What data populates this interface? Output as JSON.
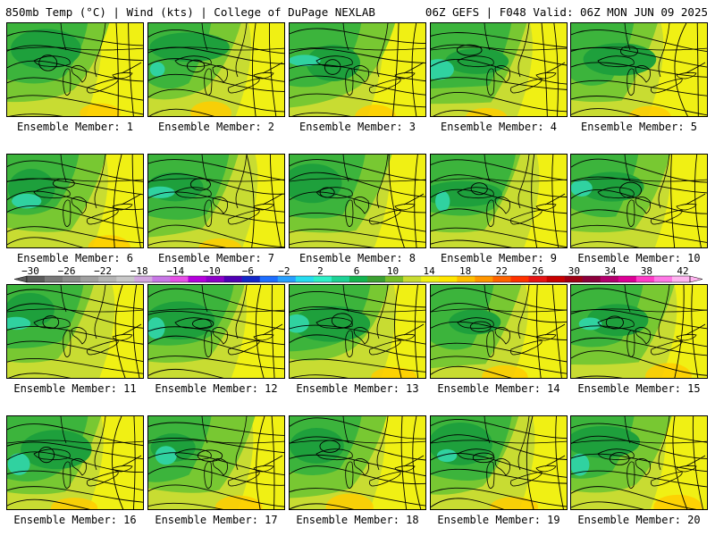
{
  "header": {
    "left": "850mb Temp (°C) | Wind (kts) | College of DuPage NEXLAB",
    "right": "06Z GEFS | F048 Valid: 06Z MON JUN 09 2025"
  },
  "panel_label_prefix": "Ensemble Member: ",
  "members": [
    1,
    2,
    3,
    4,
    5,
    6,
    7,
    8,
    9,
    10,
    11,
    12,
    13,
    14,
    15,
    16,
    17,
    18,
    19,
    20
  ],
  "colorbar": {
    "ticks": [
      "−30",
      "−26",
      "−22",
      "−18",
      "−14",
      "−10",
      "−6",
      "−2",
      "2",
      "6",
      "10",
      "14",
      "18",
      "22",
      "26",
      "30",
      "34",
      "38",
      "42"
    ],
    "colors": [
      "#5c5c5c",
      "#787878",
      "#8c8c8c",
      "#a0a0a0",
      "#b4b4b4",
      "#c8c8c8",
      "#d2a8e0",
      "#c878e6",
      "#e650e6",
      "#b400dc",
      "#8c00c8",
      "#5000b4",
      "#1428c8",
      "#1e6eff",
      "#28a0ff",
      "#28dcf0",
      "#30f0c8",
      "#1ed296",
      "#14b450",
      "#3ca032",
      "#78be28",
      "#c8dc32",
      "#f0f014",
      "#ffe600",
      "#ffbe00",
      "#ff9600",
      "#ff6400",
      "#ff3200",
      "#e61414",
      "#c80000",
      "#a00014",
      "#8c003c",
      "#b4006e",
      "#dc0096",
      "#ff3cc8",
      "#ff78e6",
      "#ffb4f0"
    ]
  },
  "colors": {
    "deep_green": "#1ea03c",
    "mid_green": "#3cb43c",
    "light_green": "#78c832",
    "yellow_green": "#c8dc32",
    "yellow": "#f0f014",
    "orange": "#ffcc00",
    "teal": "#30d2a0"
  }
}
